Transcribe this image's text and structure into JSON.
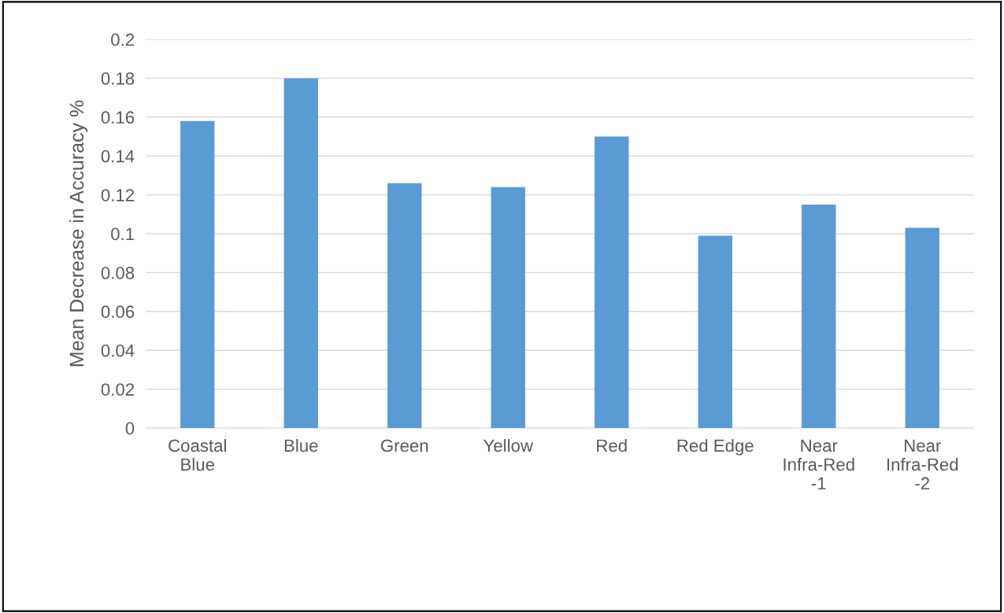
{
  "chart_data": {
    "type": "bar",
    "ylabel": "Mean Decrease in Accuracy %",
    "categories": [
      "Coastal\nBlue",
      "Blue",
      "Green",
      "Yellow",
      "Red",
      "Red Edge",
      "Near\nInfra-Red\n-1",
      "Near\nInfra-Red\n-2"
    ],
    "values": [
      0.158,
      0.18,
      0.126,
      0.124,
      0.15,
      0.099,
      0.115,
      0.103
    ],
    "color": "#5b9bd5",
    "ylim": [
      0,
      0.2
    ],
    "yticks": [
      0,
      0.02,
      0.04,
      0.06,
      0.08,
      0.1,
      0.12,
      0.14,
      0.16,
      0.18,
      0.2
    ],
    "grid": "y",
    "legend": false
  }
}
